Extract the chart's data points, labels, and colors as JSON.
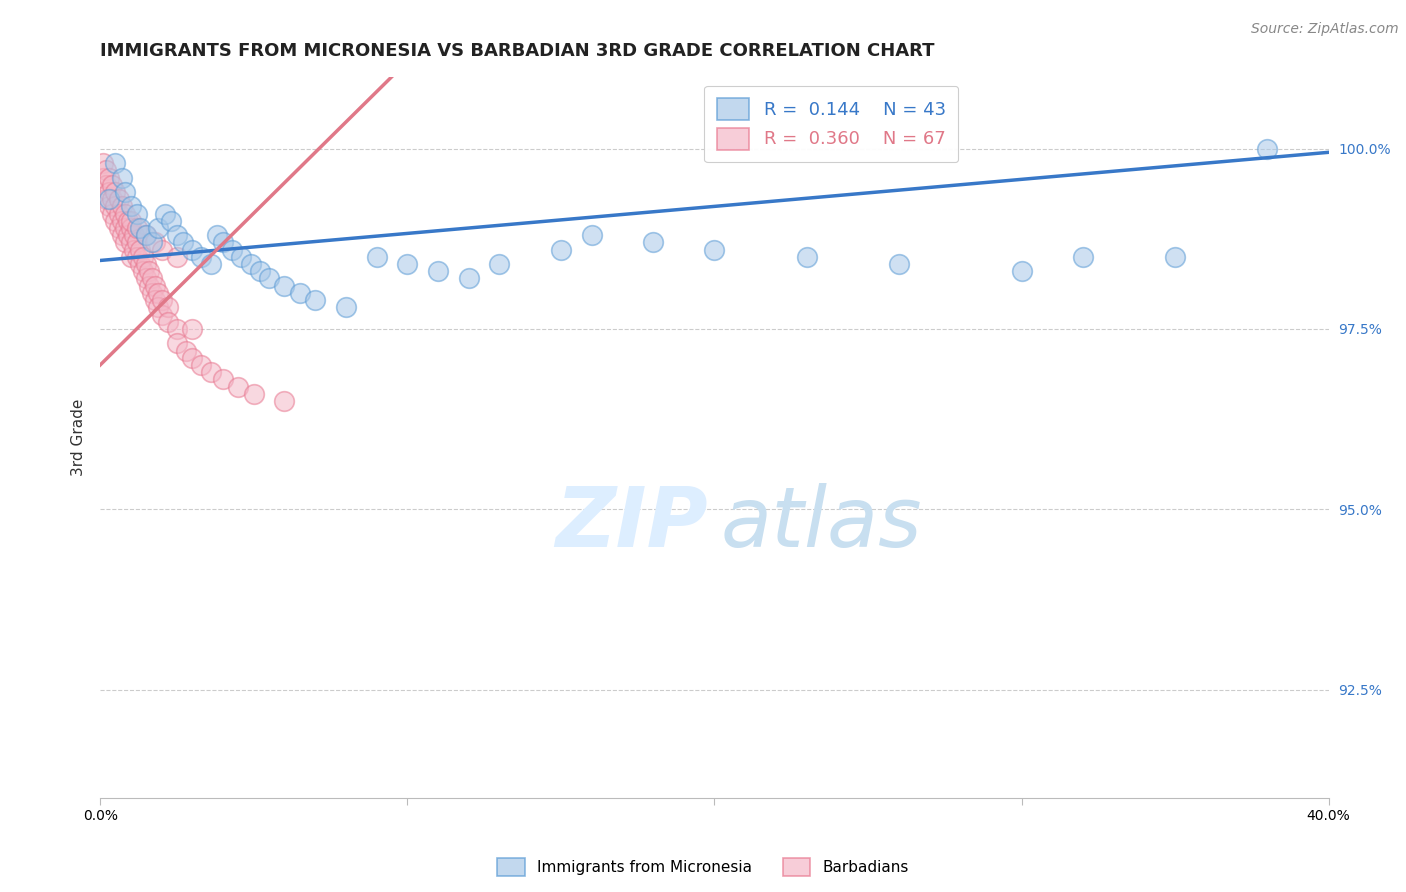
{
  "title": "IMMIGRANTS FROM MICRONESIA VS BARBADIAN 3RD GRADE CORRELATION CHART",
  "source": "Source: ZipAtlas.com",
  "ylabel": "3rd Grade",
  "xlim": [
    0.0,
    0.4
  ],
  "ylim": [
    0.91,
    1.01
  ],
  "yticks": [
    0.925,
    0.95,
    0.975,
    1.0
  ],
  "ytick_labels": [
    "92.5%",
    "95.0%",
    "97.5%",
    "100.0%"
  ],
  "legend_r_blue": "R =  0.144",
  "legend_n_blue": "N = 43",
  "legend_r_pink": "R =  0.360",
  "legend_n_pink": "N = 67",
  "legend_label_blue": "Immigrants from Micronesia",
  "legend_label_pink": "Barbadians",
  "blue_scatter_x": [
    0.003,
    0.005,
    0.007,
    0.008,
    0.01,
    0.012,
    0.013,
    0.015,
    0.017,
    0.019,
    0.021,
    0.023,
    0.025,
    0.027,
    0.03,
    0.033,
    0.036,
    0.038,
    0.04,
    0.043,
    0.046,
    0.049,
    0.052,
    0.055,
    0.06,
    0.065,
    0.07,
    0.08,
    0.09,
    0.1,
    0.11,
    0.12,
    0.13,
    0.15,
    0.16,
    0.18,
    0.2,
    0.23,
    0.26,
    0.3,
    0.32,
    0.35,
    0.38
  ],
  "blue_scatter_y": [
    0.993,
    0.998,
    0.996,
    0.994,
    0.992,
    0.991,
    0.989,
    0.988,
    0.987,
    0.989,
    0.991,
    0.99,
    0.988,
    0.987,
    0.986,
    0.985,
    0.984,
    0.988,
    0.987,
    0.986,
    0.985,
    0.984,
    0.983,
    0.982,
    0.981,
    0.98,
    0.979,
    0.978,
    0.985,
    0.984,
    0.983,
    0.982,
    0.984,
    0.986,
    0.988,
    0.987,
    0.986,
    0.985,
    0.984,
    0.983,
    0.985,
    0.985,
    1.0
  ],
  "pink_scatter_x": [
    0.001,
    0.001,
    0.002,
    0.002,
    0.002,
    0.003,
    0.003,
    0.003,
    0.004,
    0.004,
    0.004,
    0.005,
    0.005,
    0.005,
    0.006,
    0.006,
    0.006,
    0.007,
    0.007,
    0.007,
    0.008,
    0.008,
    0.008,
    0.009,
    0.009,
    0.01,
    0.01,
    0.01,
    0.011,
    0.011,
    0.012,
    0.012,
    0.013,
    0.013,
    0.014,
    0.014,
    0.015,
    0.015,
    0.016,
    0.016,
    0.017,
    0.017,
    0.018,
    0.018,
    0.019,
    0.019,
    0.02,
    0.02,
    0.022,
    0.022,
    0.025,
    0.025,
    0.028,
    0.03,
    0.033,
    0.036,
    0.04,
    0.045,
    0.05,
    0.06,
    0.01,
    0.012,
    0.015,
    0.018,
    0.02,
    0.025,
    0.03
  ],
  "pink_scatter_y": [
    0.998,
    0.996,
    0.997,
    0.995,
    0.993,
    0.996,
    0.994,
    0.992,
    0.995,
    0.993,
    0.991,
    0.994,
    0.992,
    0.99,
    0.993,
    0.991,
    0.989,
    0.992,
    0.99,
    0.988,
    0.991,
    0.989,
    0.987,
    0.99,
    0.988,
    0.989,
    0.987,
    0.985,
    0.988,
    0.986,
    0.987,
    0.985,
    0.986,
    0.984,
    0.985,
    0.983,
    0.984,
    0.982,
    0.983,
    0.981,
    0.982,
    0.98,
    0.981,
    0.979,
    0.98,
    0.978,
    0.979,
    0.977,
    0.978,
    0.976,
    0.975,
    0.973,
    0.972,
    0.971,
    0.97,
    0.969,
    0.968,
    0.967,
    0.966,
    0.965,
    0.99,
    0.989,
    0.988,
    0.987,
    0.986,
    0.985,
    0.975
  ],
  "blue_line_x": [
    0.0,
    0.4
  ],
  "blue_line_y": [
    0.9845,
    0.9995
  ],
  "pink_line_x": [
    0.0,
    0.095
  ],
  "pink_line_y": [
    0.97,
    1.01
  ],
  "blue_color": "#a8c8e8",
  "pink_color": "#f4b8c8",
  "blue_edge_color": "#5b9bd5",
  "pink_edge_color": "#e87890",
  "blue_line_color": "#3878c8",
  "pink_line_color": "#e07888",
  "grid_color": "#cccccc",
  "title_fontsize": 13,
  "source_fontsize": 10,
  "axis_label_fontsize": 11,
  "tick_fontsize": 10,
  "legend_fontsize": 13,
  "watermark_zip_color": "#ddeeff",
  "watermark_atlas_color": "#c8dff0",
  "watermark_fontsize": 60
}
